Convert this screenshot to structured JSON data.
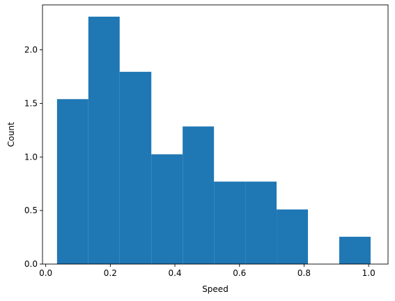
{
  "chart_data": {
    "type": "bar",
    "subtype": "histogram",
    "title": "",
    "xlabel": "Speed",
    "ylabel": "Count",
    "xlim": [
      -0.01,
      1.06
    ],
    "ylim": [
      0,
      2.42
    ],
    "bar_color": "#1f77b4",
    "grid": false,
    "bin_edges": [
      0.035,
      0.132,
      0.229,
      0.327,
      0.424,
      0.521,
      0.618,
      0.715,
      0.812,
      0.909,
      1.006
    ],
    "values": [
      1.54,
      2.31,
      1.795,
      1.025,
      1.285,
      0.77,
      0.77,
      0.51,
      0.0,
      0.255
    ],
    "x_ticks": [
      0.0,
      0.2,
      0.4,
      0.6,
      0.8,
      1.0
    ],
    "x_tick_labels": [
      "0.0",
      "0.2",
      "0.4",
      "0.6",
      "0.8",
      "1.0"
    ],
    "y_ticks": [
      0.0,
      0.5,
      1.0,
      1.5,
      2.0
    ],
    "y_tick_labels": [
      "0.0",
      "0.5",
      "1.0",
      "1.5",
      "2.0"
    ]
  }
}
